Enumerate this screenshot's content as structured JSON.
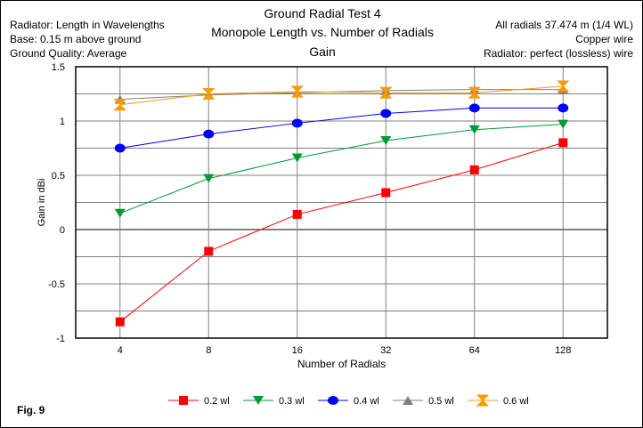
{
  "header": {
    "left": [
      "Radiator: Length in Wavelengths",
      "Base: 0.15 m above ground",
      "Ground Quality:  Average"
    ],
    "right": [
      "All radials 37.474 m (1/4 WL)",
      "Copper wire",
      "Radiator: perfect (lossless) wire"
    ],
    "fig_label": "Fig. 9"
  },
  "chart_data": {
    "type": "line",
    "title": "Ground Radial Test 4",
    "subtitle": "Monopole Length vs. Number of Radials",
    "subtitle2": "Gain",
    "xlabel": "Number of Radials",
    "ylabel": "Gain in dBi",
    "categories": [
      "4",
      "8",
      "16",
      "32",
      "64",
      "128"
    ],
    "ylim": [
      -1,
      1.5
    ],
    "yticks": [
      "1.5",
      "1",
      "0.5",
      "0",
      "-0.5",
      "-1"
    ],
    "ytick_values": [
      1.5,
      1,
      0.5,
      0,
      -0.5,
      -1
    ],
    "grid": true,
    "legend_position": "bottom",
    "series": [
      {
        "name": "0.2 wl",
        "color": "#ff0000",
        "marker": "square",
        "values": [
          -0.85,
          -0.2,
          0.14,
          0.34,
          0.55,
          0.8
        ]
      },
      {
        "name": "0.3 wl",
        "color": "#009933",
        "marker": "triangle-down",
        "values": [
          0.15,
          0.47,
          0.66,
          0.82,
          0.92,
          0.97
        ]
      },
      {
        "name": "0.4 wl",
        "color": "#0000ff",
        "marker": "circle",
        "values": [
          0.75,
          0.88,
          0.98,
          1.07,
          1.12,
          1.12
        ]
      },
      {
        "name": "0.5 wl",
        "color": "#808080",
        "marker": "triangle-up",
        "values": [
          1.2,
          1.24,
          1.26,
          1.28,
          1.29,
          1.29
        ]
      },
      {
        "name": "0.6 wl",
        "color": "#ff9900",
        "marker": "hourglass",
        "values": [
          1.15,
          1.25,
          1.27,
          1.26,
          1.26,
          1.32
        ]
      }
    ]
  }
}
